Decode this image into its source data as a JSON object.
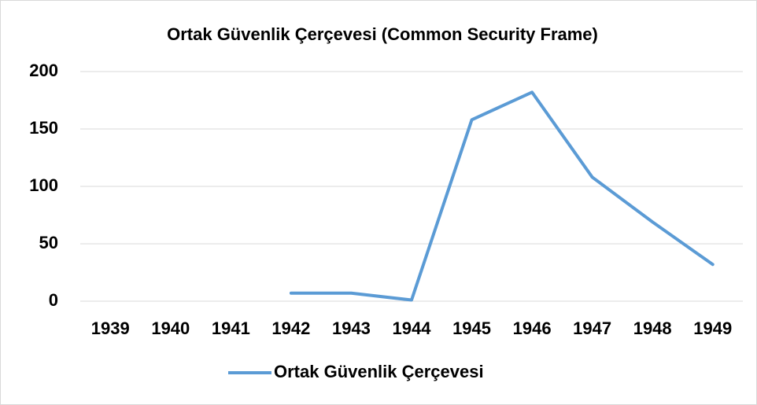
{
  "chart_data": {
    "type": "line",
    "title": "Ortak Güvenlik Çerçevesi (Common Security Frame)",
    "categories": [
      "1939",
      "1940",
      "1941",
      "1942",
      "1943",
      "1944",
      "1945",
      "1946",
      "1947",
      "1948",
      "1949"
    ],
    "series": [
      {
        "name": "Ortak Güvenlik Çerçevesi",
        "color": "#5b9bd5",
        "values": [
          null,
          null,
          null,
          7,
          7,
          1,
          158,
          182,
          108,
          69,
          32
        ]
      }
    ],
    "ylim": [
      0,
      200
    ],
    "yticks": [
      0,
      50,
      100,
      150,
      200
    ],
    "grid": true,
    "legend": "bottom"
  }
}
